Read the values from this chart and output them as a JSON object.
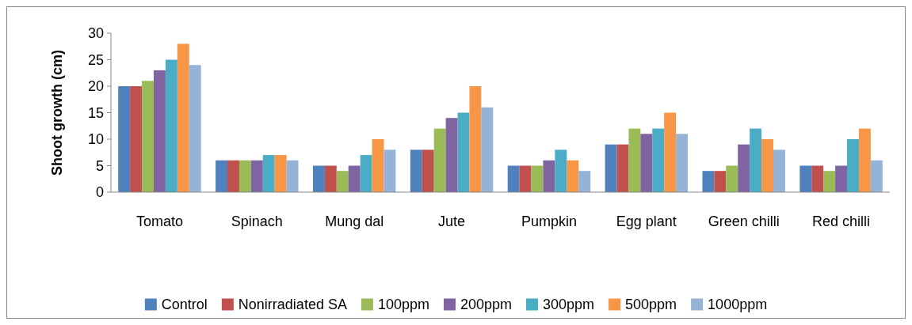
{
  "chart_data": {
    "type": "bar",
    "ylabel": "Shoot growth (cm)",
    "categories": [
      "Tomato",
      "Spinach",
      "Mung dal",
      "Jute",
      "Pumpkin",
      "Egg plant",
      "Green chilli",
      "Red chilli"
    ],
    "series": [
      {
        "name": "Control",
        "color": "#4f81bd",
        "values": [
          20,
          6,
          5,
          8,
          5,
          9,
          4,
          5
        ]
      },
      {
        "name": "Nonirradiated SA",
        "color": "#c0504d",
        "values": [
          20,
          6,
          5,
          8,
          5,
          9,
          4,
          5
        ]
      },
      {
        "name": "100ppm",
        "color": "#9bbb59",
        "values": [
          21,
          6,
          4,
          12,
          5,
          12,
          5,
          4
        ]
      },
      {
        "name": "200ppm",
        "color": "#8064a2",
        "values": [
          23,
          6,
          5,
          14,
          6,
          11,
          9,
          5
        ]
      },
      {
        "name": "300ppm",
        "color": "#4bacc6",
        "values": [
          25,
          7,
          7,
          15,
          8,
          12,
          12,
          10
        ]
      },
      {
        "name": "500ppm",
        "color": "#f79646",
        "values": [
          28,
          7,
          10,
          20,
          6,
          15,
          10,
          12
        ]
      },
      {
        "name": "1000ppm",
        "color": "#95b3d7",
        "values": [
          24,
          6,
          8,
          16,
          4,
          11,
          8,
          6
        ]
      }
    ],
    "ylim": [
      0,
      30
    ],
    "yticks": [
      0,
      5,
      10,
      15,
      20,
      25,
      30
    ],
    "grid": false,
    "legend": "bottom"
  }
}
